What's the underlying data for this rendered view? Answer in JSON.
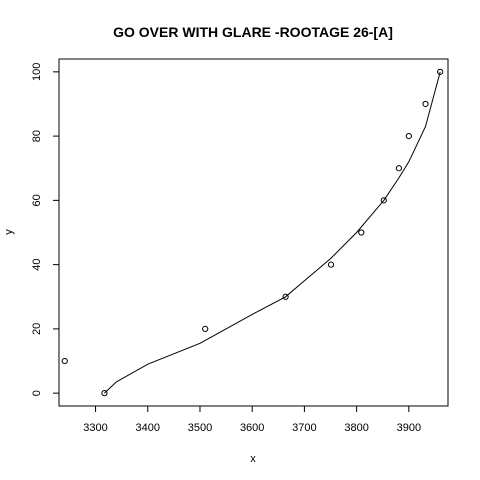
{
  "chart_data": {
    "type": "scatter",
    "title": "GO OVER WITH GLARE -ROOTAGE 26-[A]",
    "xlabel": "x",
    "ylabel": "y",
    "xlim": [
      3230,
      3975
    ],
    "ylim": [
      -4,
      104
    ],
    "x_ticks": [
      3300,
      3400,
      3500,
      3600,
      3700,
      3800,
      3900
    ],
    "y_ticks": [
      0,
      20,
      40,
      60,
      80,
      100
    ],
    "grid": false,
    "legend": "none",
    "series": [
      {
        "kind": "points",
        "x": [
          3241,
          3317,
          3510,
          3664,
          3751,
          3809,
          3852,
          3881,
          3900,
          3932,
          3960
        ],
        "y": [
          10,
          0,
          20,
          30,
          40,
          50,
          60,
          70,
          80,
          90,
          100
        ]
      },
      {
        "kind": "line",
        "x": [
          3317,
          3340,
          3400,
          3500,
          3600,
          3664,
          3700,
          3751,
          3800,
          3852,
          3881,
          3900,
          3932,
          3960
        ],
        "y": [
          0,
          3.5,
          9,
          15.5,
          24.5,
          30,
          35,
          42,
          50,
          60,
          67,
          72,
          83,
          100
        ]
      }
    ]
  }
}
